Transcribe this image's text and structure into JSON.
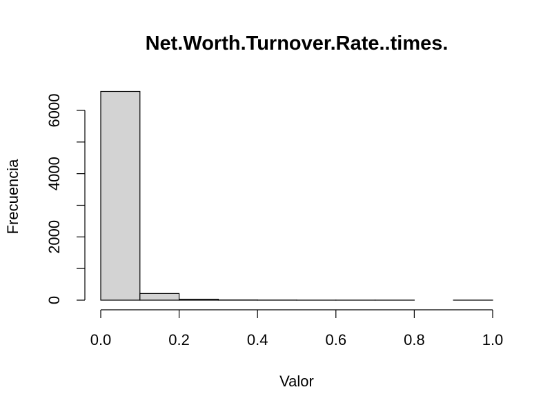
{
  "chart_data": {
    "type": "bar",
    "title": "Net.Worth.Turnover.Rate..times.",
    "xlabel": "Valor",
    "ylabel": "Frecuencia",
    "bins": [
      {
        "start": 0.0,
        "end": 0.1,
        "count": 6600
      },
      {
        "start": 0.1,
        "end": 0.2,
        "count": 210
      },
      {
        "start": 0.2,
        "end": 0.3,
        "count": 30
      },
      {
        "start": 0.3,
        "end": 0.4,
        "count": 6
      },
      {
        "start": 0.4,
        "end": 0.5,
        "count": 3
      },
      {
        "start": 0.5,
        "end": 0.6,
        "count": 1
      },
      {
        "start": 0.6,
        "end": 0.7,
        "count": 1
      },
      {
        "start": 0.7,
        "end": 0.8,
        "count": 1
      },
      {
        "start": 0.8,
        "end": 0.9,
        "count": 0
      },
      {
        "start": 0.9,
        "end": 1.0,
        "count": 1
      }
    ],
    "xlim": [
      0,
      1.0
    ],
    "ylim": [
      0,
      6600
    ],
    "xticks": [
      0.0,
      0.2,
      0.4,
      0.6,
      0.8,
      1.0
    ],
    "xtick_labels": [
      "0.0",
      "0.2",
      "0.4",
      "0.6",
      "0.8",
      "1.0"
    ],
    "yticks": [
      0,
      1000,
      2000,
      3000,
      4000,
      5000,
      6000
    ],
    "ytick_labels": [
      "0",
      "",
      "2000",
      "",
      "4000",
      "",
      "6000"
    ],
    "bar_color": "#d3d3d3",
    "grid": false,
    "legend": "none"
  }
}
